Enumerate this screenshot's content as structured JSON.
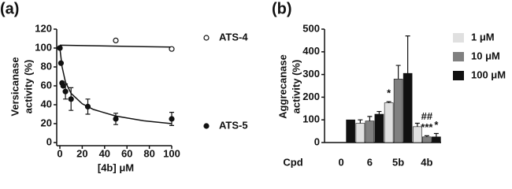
{
  "chart_data": [
    {
      "type": "scatter",
      "panel_label": "(a)",
      "y_label": [
        "Versicanase",
        "activity (%)"
      ],
      "x_label": "[4b] μM",
      "xlim": [
        0,
        100
      ],
      "xticks": [
        0,
        20,
        40,
        60,
        80,
        100
      ],
      "ylim": [
        0,
        120
      ],
      "yticks": [
        0,
        20,
        40,
        60,
        80,
        100,
        120
      ],
      "series": [
        {
          "name": "ATS-4",
          "marker": "open",
          "color": "#111111",
          "x": [
            0,
            50,
            100
          ],
          "values": [
            100,
            108,
            99
          ],
          "fit": {
            "x": [
              0,
              25,
              50,
              75,
              100
            ],
            "values": [
              103,
              102.5,
              102,
              101.5,
              101
            ]
          }
        },
        {
          "name": "ATS-5",
          "marker": "filled",
          "color": "#111111",
          "x": [
            0,
            1,
            2,
            3,
            5,
            10,
            25,
            50,
            100
          ],
          "values": [
            100,
            84,
            63,
            60,
            54,
            46,
            38,
            25,
            25
          ],
          "errors": [
            null,
            null,
            null,
            null,
            8,
            12,
            8,
            6,
            7
          ],
          "fit": {
            "x": [
              0,
              2,
              5,
              10,
              20,
              30,
              50,
              75,
              100
            ],
            "values": [
              100,
              80,
              64,
              52,
              41,
              35,
              28,
              23,
              20
            ]
          }
        }
      ]
    },
    {
      "type": "bar",
      "panel_label": "(b)",
      "y_label": [
        "Aggrecanase",
        "activity (%)"
      ],
      "x_label": "Cpd",
      "categories": [
        "0",
        "6",
        "5b",
        "4b"
      ],
      "ylim": [
        0,
        500
      ],
      "yticks": [
        0,
        100,
        200,
        300,
        400,
        500
      ],
      "series": [
        {
          "name": "1 μM",
          "color": "#e0e0e0",
          "values": [
            null,
            85,
            175,
            70
          ],
          "errors": [
            null,
            15,
            5,
            15
          ]
        },
        {
          "name": "10 μM",
          "color": "#808080",
          "values": [
            null,
            95,
            280,
            25
          ],
          "errors": [
            null,
            20,
            60,
            5
          ]
        },
        {
          "name": "100 μM",
          "color": "#111111",
          "values": [
            100,
            125,
            305,
            25
          ],
          "errors": [
            null,
            12,
            165,
            15
          ]
        }
      ],
      "annotations": [
        {
          "text": "*",
          "category": 2,
          "series": 0
        },
        {
          "text": "***",
          "category": 3,
          "series": 1
        },
        {
          "text": "##",
          "category": 3,
          "series": 1
        },
        {
          "text": "*",
          "category": 3,
          "series": 2
        }
      ]
    }
  ]
}
